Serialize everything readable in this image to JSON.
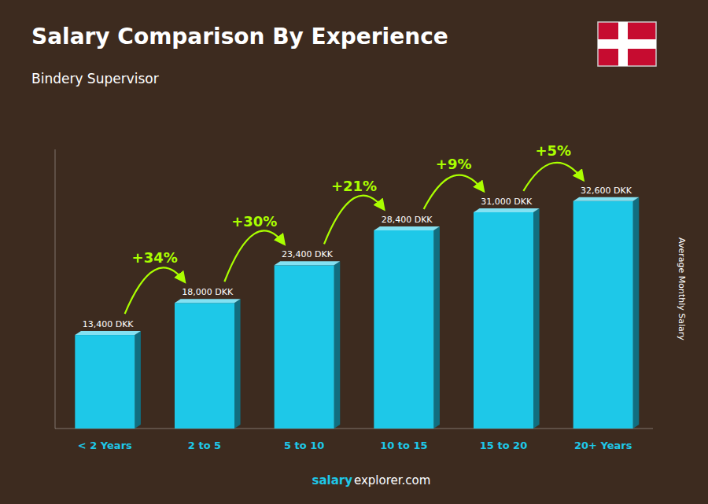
{
  "chart_data": {
    "type": "bar",
    "title": "Salary Comparison By Experience",
    "subtitle": "Bindery Supervisor",
    "ylabel": "Average Monthly Salary",
    "footer": [
      "salary",
      "explorer.com"
    ],
    "categories": [
      "< 2 Years",
      "2 to 5",
      "5 to 10",
      "10 to 15",
      "15 to 20",
      "20+ Years"
    ],
    "values": [
      13400,
      18000,
      23400,
      28400,
      31000,
      32600
    ],
    "value_labels": [
      "13,400 DKK",
      "18,000 DKK",
      "23,400 DKK",
      "28,400 DKK",
      "31,000 DKK",
      "32,600 DKK"
    ],
    "data_labels": true,
    "annotations": [
      "+34%",
      "+30%",
      "+21%",
      "+9%",
      "+5%"
    ],
    "color": "#1EC8E8",
    "ylim": [
      0,
      40000
    ],
    "grid": false,
    "tick_labels": "x"
  }
}
